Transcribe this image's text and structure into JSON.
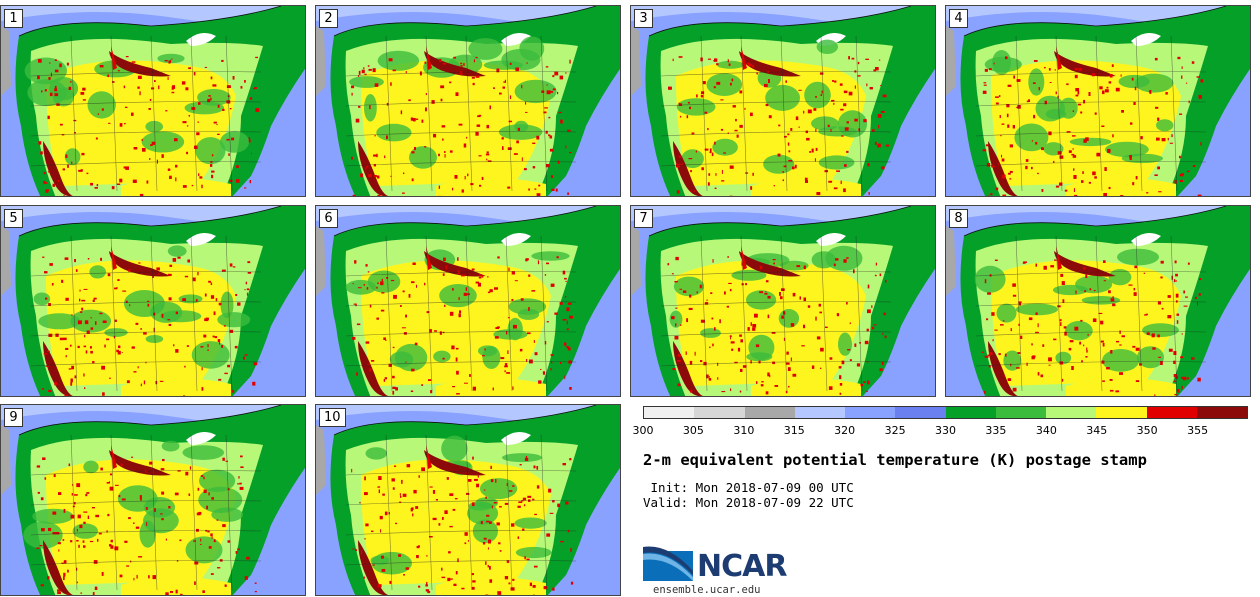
{
  "panels": [
    {
      "label": "1"
    },
    {
      "label": "2"
    },
    {
      "label": "3"
    },
    {
      "label": "4"
    },
    {
      "label": "5"
    },
    {
      "label": "6"
    },
    {
      "label": "7"
    },
    {
      "label": "8"
    },
    {
      "label": "9"
    },
    {
      "label": "10"
    }
  ],
  "colorbar": {
    "ticks": [
      "300",
      "305",
      "310",
      "315",
      "320",
      "325",
      "330",
      "335",
      "340",
      "345",
      "350",
      "355"
    ],
    "colors": [
      "#f0f0f0",
      "#d6d6d6",
      "#a8a8a8",
      "#b4c8ff",
      "#8aa2ff",
      "#6a80f0",
      "#04a028",
      "#3cbc3c",
      "#b8f878",
      "#fff51e",
      "#e10000",
      "#8c0a0a"
    ]
  },
  "title": "2-m equivalent potential temperature (K) postage stamp",
  "init": " Init: Mon 2018-07-09 00 UTC",
  "valid": "Valid: Mon 2018-07-09 22 UTC",
  "logo": {
    "name": "NCAR",
    "url": "ensemble.ucar.edu"
  },
  "map_colors": {
    "ocean_cool": "#8aa2ff",
    "ocean_cooler": "#b4c8ff",
    "gray": "#a8a8a8",
    "green_dark": "#04a028",
    "green_mid": "#3cbc3c",
    "green_light": "#b8f878",
    "yellow": "#fff51e",
    "red": "#e10000",
    "dark_red": "#8c0a0a",
    "lake": "#ffffff"
  }
}
